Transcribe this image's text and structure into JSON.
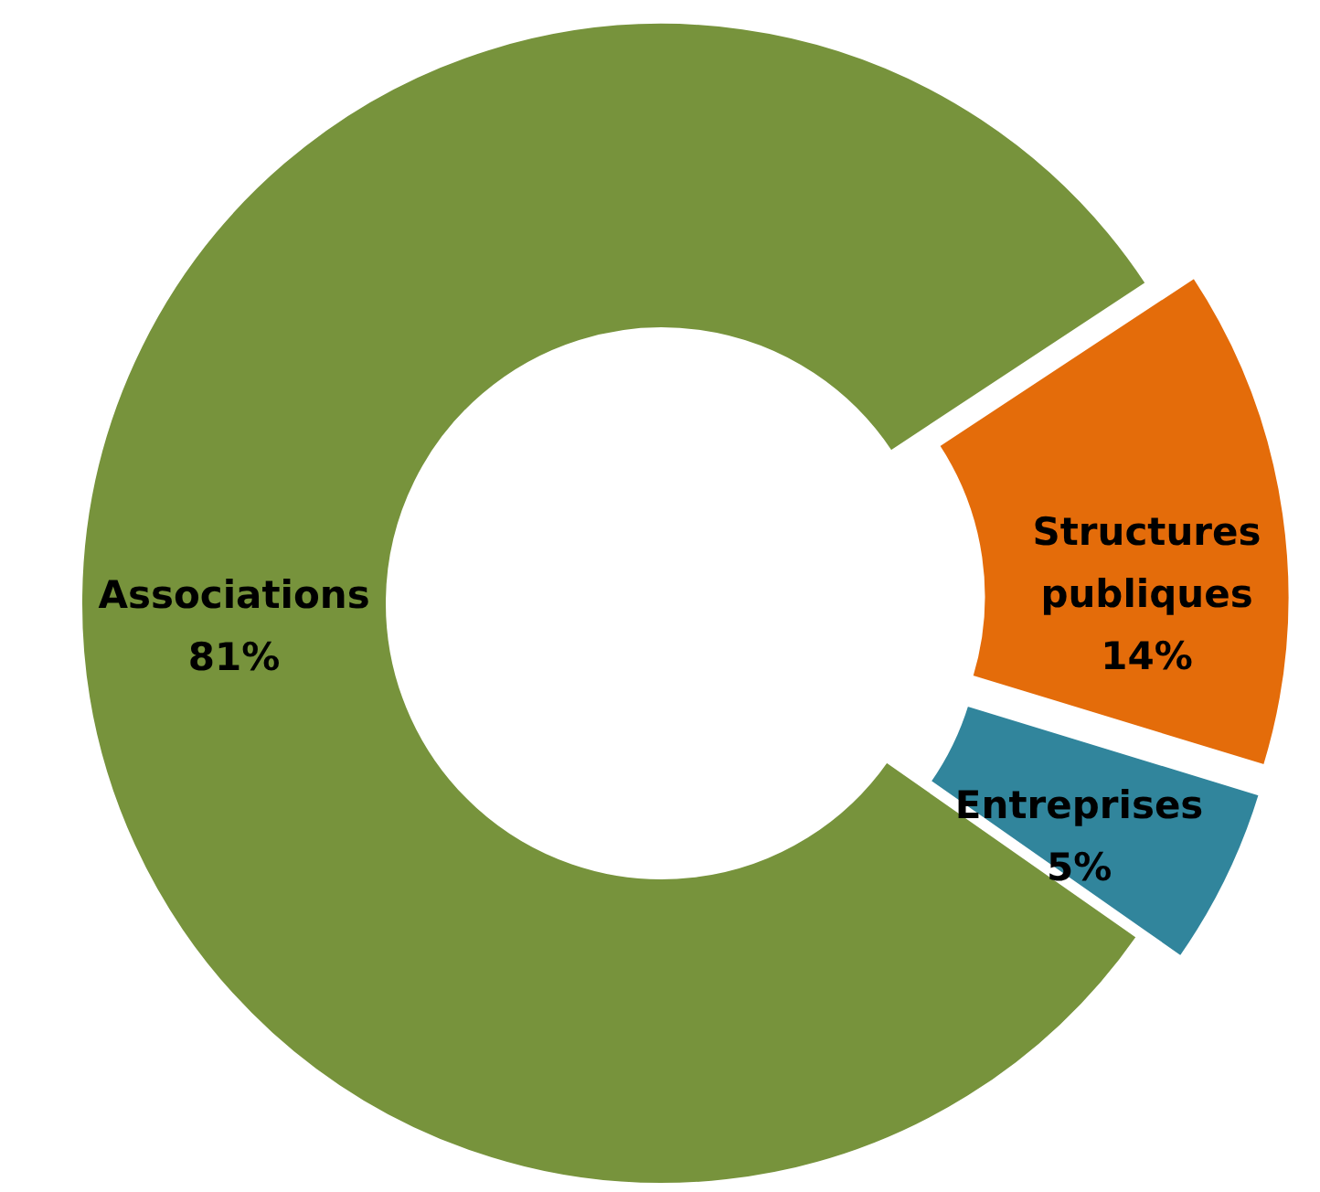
{
  "chart_data": {
    "type": "donut",
    "categories": [
      "Associations",
      "Structures publiques",
      "Entreprises"
    ],
    "values": [
      81,
      14,
      5
    ],
    "value_labels": [
      "81%",
      "14%",
      "5%"
    ],
    "colors": [
      "#77933c",
      "#e46c0a",
      "#31859c"
    ]
  }
}
